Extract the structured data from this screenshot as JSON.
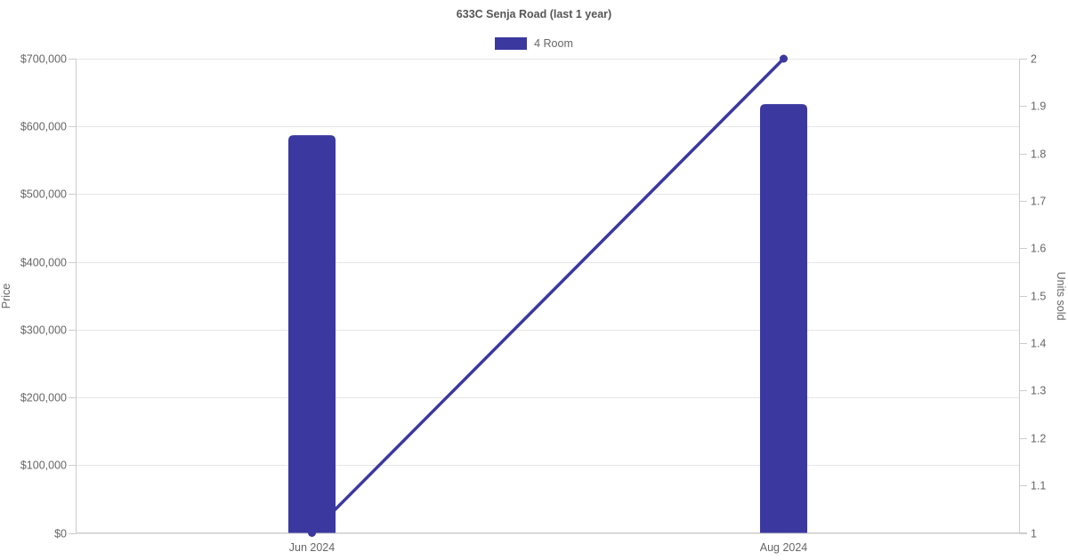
{
  "header": {
    "title": "633C Senja Road (last 1 year)"
  },
  "legend": {
    "items": [
      {
        "label": "4 Room",
        "color": "#3b38a0",
        "marker": "square"
      }
    ]
  },
  "chart_data": {
    "type": "bar",
    "title": "633C Senja Road (last 1 year)",
    "categories": [
      "Jun 2024",
      "Aug 2024"
    ],
    "series": [
      {
        "name": "4 Room",
        "type": "bar",
        "yaxis": "left",
        "color": "#3b38a0",
        "values": [
          587000,
          633000
        ]
      },
      {
        "name": "4 Room",
        "type": "line",
        "yaxis": "right",
        "color": "#3b38a0",
        "marker": "circle",
        "values": [
          1,
          2
        ]
      }
    ],
    "xlabel": "",
    "ylabel_left": "Price",
    "ylabel_right": "Units sold",
    "ylim_left": [
      0,
      700000
    ],
    "ytick_step_left": 100000,
    "ytick_prefix_left": "$",
    "ylim_right": [
      1,
      2
    ],
    "ytick_step_right": 0.1,
    "grid": true,
    "legend_position": "top",
    "colors": {
      "series": "#3b38a0",
      "grid": "#e6e6e6",
      "axis_line": "#cccccc",
      "tick": "#cccccc",
      "tick_label": "#666666",
      "axis_title": "#666666",
      "chart_title": "#555555",
      "background": "#ffffff"
    }
  }
}
